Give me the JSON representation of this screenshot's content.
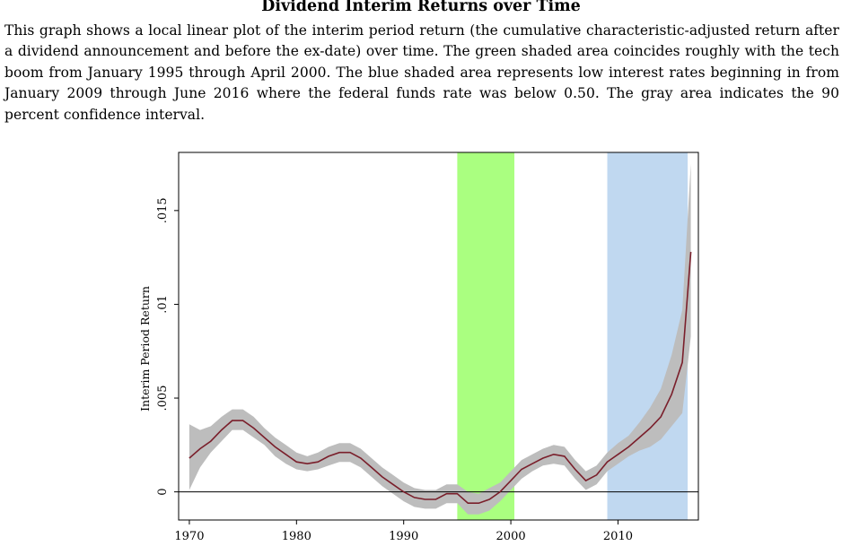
{
  "figure": {
    "title": "Dividend Interim Returns over Time",
    "caption": "This graph shows a local linear plot of the interim period return (the cumulative characteristic-adjusted return after a dividend announcement and before the ex-date) over time. The green shaded area coincides roughly with the tech boom from January 1995 through April 2000. The blue shaded area represents low interest rates beginning in from January 2009 through June 2016 where the federal funds rate was below 0.50. The gray area indicates the 90 percent confidence interval."
  },
  "chart_data": {
    "type": "line",
    "ylabel": "Interim Period Return",
    "xlabel": "",
    "xlim": [
      1969.0,
      2017.5
    ],
    "ylim": [
      -0.0015,
      0.0181
    ],
    "xticks": [
      1970,
      1980,
      1990,
      2000,
      2010
    ],
    "yticks": [
      0,
      0.005,
      0.01,
      0.015
    ],
    "ytick_labels": [
      "0",
      ".005",
      ".01",
      ".015"
    ],
    "zero_line": 0,
    "grid": false,
    "shaded_regions": [
      {
        "from": 1995.0,
        "to": 2000.33,
        "color": "#aaff80"
      },
      {
        "from": 2009.0,
        "to": 2016.5,
        "color": "#c0d8f0"
      }
    ],
    "line_color": "#7a1f2b",
    "band_color": "#bdbdbd",
    "series": [
      {
        "x": [
          1970,
          1971,
          1972,
          1973,
          1974,
          1975,
          1976,
          1977,
          1978,
          1979,
          1980,
          1981,
          1982,
          1983,
          1984,
          1985,
          1986,
          1987,
          1988,
          1989,
          1990,
          1991,
          1992,
          1993,
          1994,
          1995,
          1996,
          1997,
          1998,
          1999,
          2000,
          2001,
          2002,
          2003,
          2004,
          2005,
          2006,
          2007,
          2008,
          2009,
          2010,
          2011,
          2012,
          2013,
          2014,
          2015,
          2016,
          2016.8
        ],
        "values": [
          0.0018,
          0.0023,
          0.0027,
          0.0033,
          0.0038,
          0.0038,
          0.0034,
          0.0029,
          0.0024,
          0.002,
          0.0016,
          0.0015,
          0.0016,
          0.0019,
          0.0021,
          0.0021,
          0.0018,
          0.0013,
          0.0008,
          0.0004,
          0.0,
          -0.0003,
          -0.0004,
          -0.0004,
          -0.0001,
          -0.0001,
          -0.0006,
          -0.0006,
          -0.0004,
          0.0,
          0.0006,
          0.0012,
          0.0015,
          0.0018,
          0.002,
          0.0019,
          0.0012,
          0.0006,
          0.0009,
          0.0016,
          0.002,
          0.0024,
          0.0029,
          0.0034,
          0.004,
          0.0052,
          0.0069,
          0.0128
        ],
        "ci_lower": [
          0.0001,
          0.0013,
          0.0021,
          0.0027,
          0.0033,
          0.0033,
          0.0029,
          0.0025,
          0.0019,
          0.0015,
          0.0012,
          0.0011,
          0.0012,
          0.0014,
          0.0016,
          0.0016,
          0.0013,
          0.0008,
          0.0003,
          -0.0001,
          -0.0005,
          -0.0008,
          -0.0009,
          -0.0009,
          -0.0006,
          -0.0006,
          -0.0012,
          -0.0012,
          -0.001,
          -0.0005,
          0.0001,
          0.0007,
          0.0011,
          0.0014,
          0.0015,
          0.0014,
          0.0007,
          0.0001,
          0.0004,
          0.0011,
          0.0015,
          0.0019,
          0.0022,
          0.0024,
          0.0028,
          0.0035,
          0.0042,
          0.0083
        ],
        "ci_upper": [
          0.0036,
          0.0033,
          0.0035,
          0.004,
          0.0044,
          0.0044,
          0.004,
          0.0034,
          0.0029,
          0.0025,
          0.0021,
          0.0019,
          0.0021,
          0.0024,
          0.0026,
          0.0026,
          0.0023,
          0.0018,
          0.0013,
          0.0009,
          0.0005,
          0.0002,
          0.0001,
          0.0001,
          0.0004,
          0.0004,
          0.0,
          -0.0001,
          0.0002,
          0.0005,
          0.0011,
          0.0017,
          0.002,
          0.0023,
          0.0025,
          0.0024,
          0.0017,
          0.0011,
          0.0014,
          0.0021,
          0.0026,
          0.003,
          0.0037,
          0.0045,
          0.0055,
          0.0073,
          0.0097,
          0.0175
        ]
      }
    ]
  }
}
